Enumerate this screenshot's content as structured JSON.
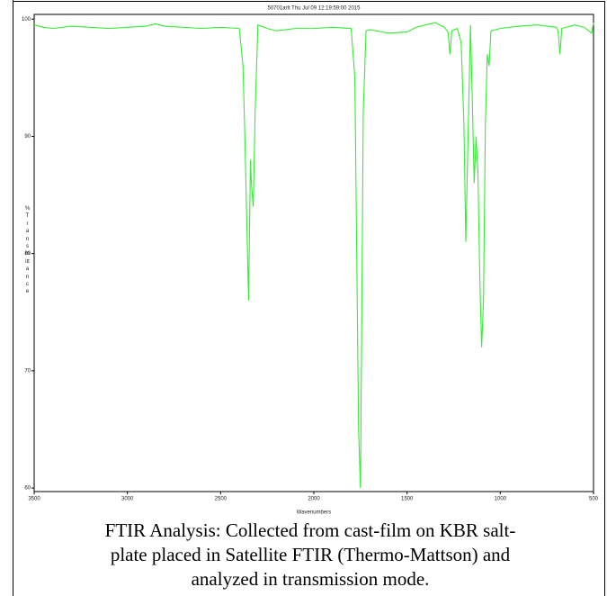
{
  "chart_data": {
    "type": "line",
    "title": "50701arlt  Thu Jul 09 12:19:59:00 2015",
    "xlabel": "Wavenumbers",
    "ylabel": "% Transmittance",
    "xlim": [
      3500,
      500
    ],
    "ylim": [
      59.7,
      100.4
    ],
    "xticks": [
      3500,
      3000,
      2500,
      2000,
      1500,
      1000,
      500
    ],
    "yticks": [
      60,
      70,
      80,
      90,
      100
    ],
    "series": [
      {
        "color": "#33ee33",
        "x": [
          3500,
          3450,
          3400,
          3300,
          3200,
          3100,
          3000,
          2900,
          2850,
          2800,
          2700,
          2600,
          2500,
          2400,
          2380,
          2370,
          2360,
          2350,
          2340,
          2335,
          2325,
          2315,
          2300,
          2250,
          2200,
          2100,
          2000,
          1900,
          1800,
          1780,
          1770,
          1760,
          1750,
          1745,
          1735,
          1720,
          1700,
          1600,
          1500,
          1450,
          1400,
          1350,
          1300,
          1280,
          1270,
          1260,
          1230,
          1210,
          1195,
          1185,
          1170,
          1160,
          1150,
          1140,
          1130,
          1120,
          1110,
          1100,
          1090,
          1080,
          1070,
          1060,
          1050,
          1000,
          900,
          800,
          700,
          690,
          680,
          670,
          600,
          550,
          510,
          500
        ],
        "values": [
          99.5,
          99.3,
          99.2,
          99.4,
          99.3,
          99.2,
          99.3,
          99.4,
          99.6,
          99.4,
          99.3,
          99.2,
          99.3,
          99.2,
          96,
          90,
          83,
          76,
          88,
          86,
          84,
          92,
          99.5,
          99.2,
          99.0,
          99.2,
          99.2,
          99.3,
          99.2,
          95,
          80,
          65,
          60,
          70,
          92,
          99.0,
          99.1,
          98.8,
          98.9,
          99.3,
          99.5,
          99.7,
          99.3,
          98.9,
          97,
          99.0,
          99.2,
          98,
          91,
          81,
          92,
          99.5,
          93,
          86,
          90,
          87,
          78,
          72,
          76,
          91,
          97,
          96,
          99,
          99.2,
          99.4,
          99.5,
          99.3,
          99.0,
          97,
          99.2,
          99.5,
          99.3,
          98.8,
          99.7
        ]
      }
    ]
  },
  "caption_lines": [
    "FTIR Analysis: Collected from cast-film on KBR salt-",
    "plate placed in Satellite FTIR (Thermo-Mattson) and",
    "analyzed in transmission mode."
  ]
}
